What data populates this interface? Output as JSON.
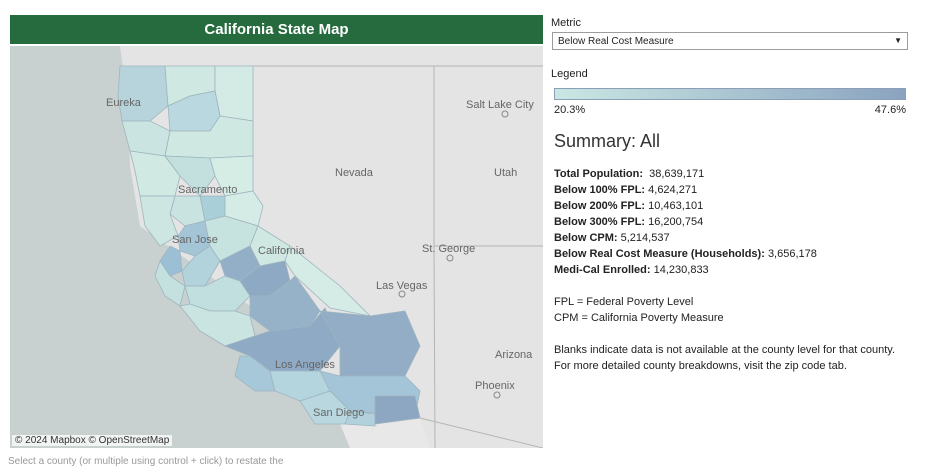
{
  "map": {
    "title": "California State Map",
    "attribution": "© 2024 Mapbox  © OpenStreetMap",
    "places": [
      "Eureka",
      "Salt Lake City",
      "Sacramento",
      "Nevada",
      "Utah",
      "San Jose",
      "St. George",
      "Las Vegas",
      "Arizona",
      "Los Angeles",
      "Phoenix",
      "San Diego",
      "California"
    ],
    "colors": {
      "light": "#cfe8e2",
      "mid": "#a9cfd9",
      "dark": "#8aa3c0"
    }
  },
  "controls": {
    "metric_label": "Metric",
    "metric_value": "Below Real Cost Measure"
  },
  "legend": {
    "label": "Legend",
    "min": "20.3%",
    "max": "47.6%"
  },
  "summary": {
    "title": "Summary: All",
    "stats": [
      {
        "label": "Total Population:",
        "value": "38,639,171"
      },
      {
        "label": "Below 100% FPL:",
        "value": "4,624,271"
      },
      {
        "label": "Below 200% FPL:",
        "value": "10,463,101"
      },
      {
        "label": "Below 300% FPL:",
        "value": "16,200,754"
      },
      {
        "label": "Below CPM:",
        "value": "5,214,537"
      },
      {
        "label": "Below Real Cost Measure (Households):",
        "value": "3,656,178"
      },
      {
        "label": "Medi-Cal Enrolled:",
        "value": "14,230,833"
      }
    ],
    "notes": [
      "FPL = Federal Poverty Level",
      "CPM = California Poverty Measure"
    ],
    "blanks_note": "Blanks indicate data is not available at the county level for that county. For more detailed county breakdowns, visit the zip code tab."
  },
  "footer_cut": "Select a county (or multiple using control + click) to restate the"
}
